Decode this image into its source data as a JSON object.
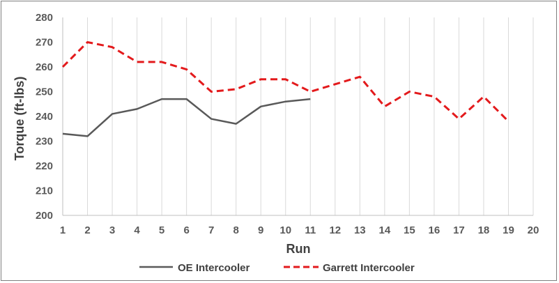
{
  "chart_data": {
    "type": "line",
    "title": "",
    "xlabel": "Run",
    "ylabel": "Torque (ft-lbs)",
    "xlim": [
      1,
      20
    ],
    "ylim": [
      200,
      280
    ],
    "x_ticks": [
      "1",
      "2",
      "3",
      "4",
      "5",
      "6",
      "7",
      "8",
      "9",
      "10",
      "11",
      "12",
      "13",
      "14",
      "15",
      "16",
      "17",
      "18",
      "19",
      "20"
    ],
    "y_ticks": [
      "200",
      "210",
      "220",
      "230",
      "240",
      "250",
      "260",
      "270",
      "280"
    ],
    "grid": "vertical",
    "legend": "bottom",
    "series": [
      {
        "name": "OE Intercooler",
        "color": "#595959",
        "style": "solid",
        "x": [
          1,
          2,
          3,
          4,
          5,
          6,
          7,
          8,
          9,
          10,
          11
        ],
        "y": [
          233,
          232,
          241,
          243,
          247,
          247,
          239,
          237,
          244,
          246,
          247
        ]
      },
      {
        "name": "Garrett Intercooler",
        "color": "#e31a1c",
        "style": "dashed",
        "x": [
          1,
          2,
          3,
          4,
          5,
          6,
          7,
          8,
          9,
          10,
          11,
          12,
          13,
          14,
          15,
          16,
          17,
          18,
          19
        ],
        "y": [
          260,
          270,
          268,
          262,
          262,
          259,
          250,
          251,
          255,
          255,
          250,
          253,
          256,
          244,
          250,
          248,
          239,
          248,
          238
        ]
      }
    ]
  }
}
